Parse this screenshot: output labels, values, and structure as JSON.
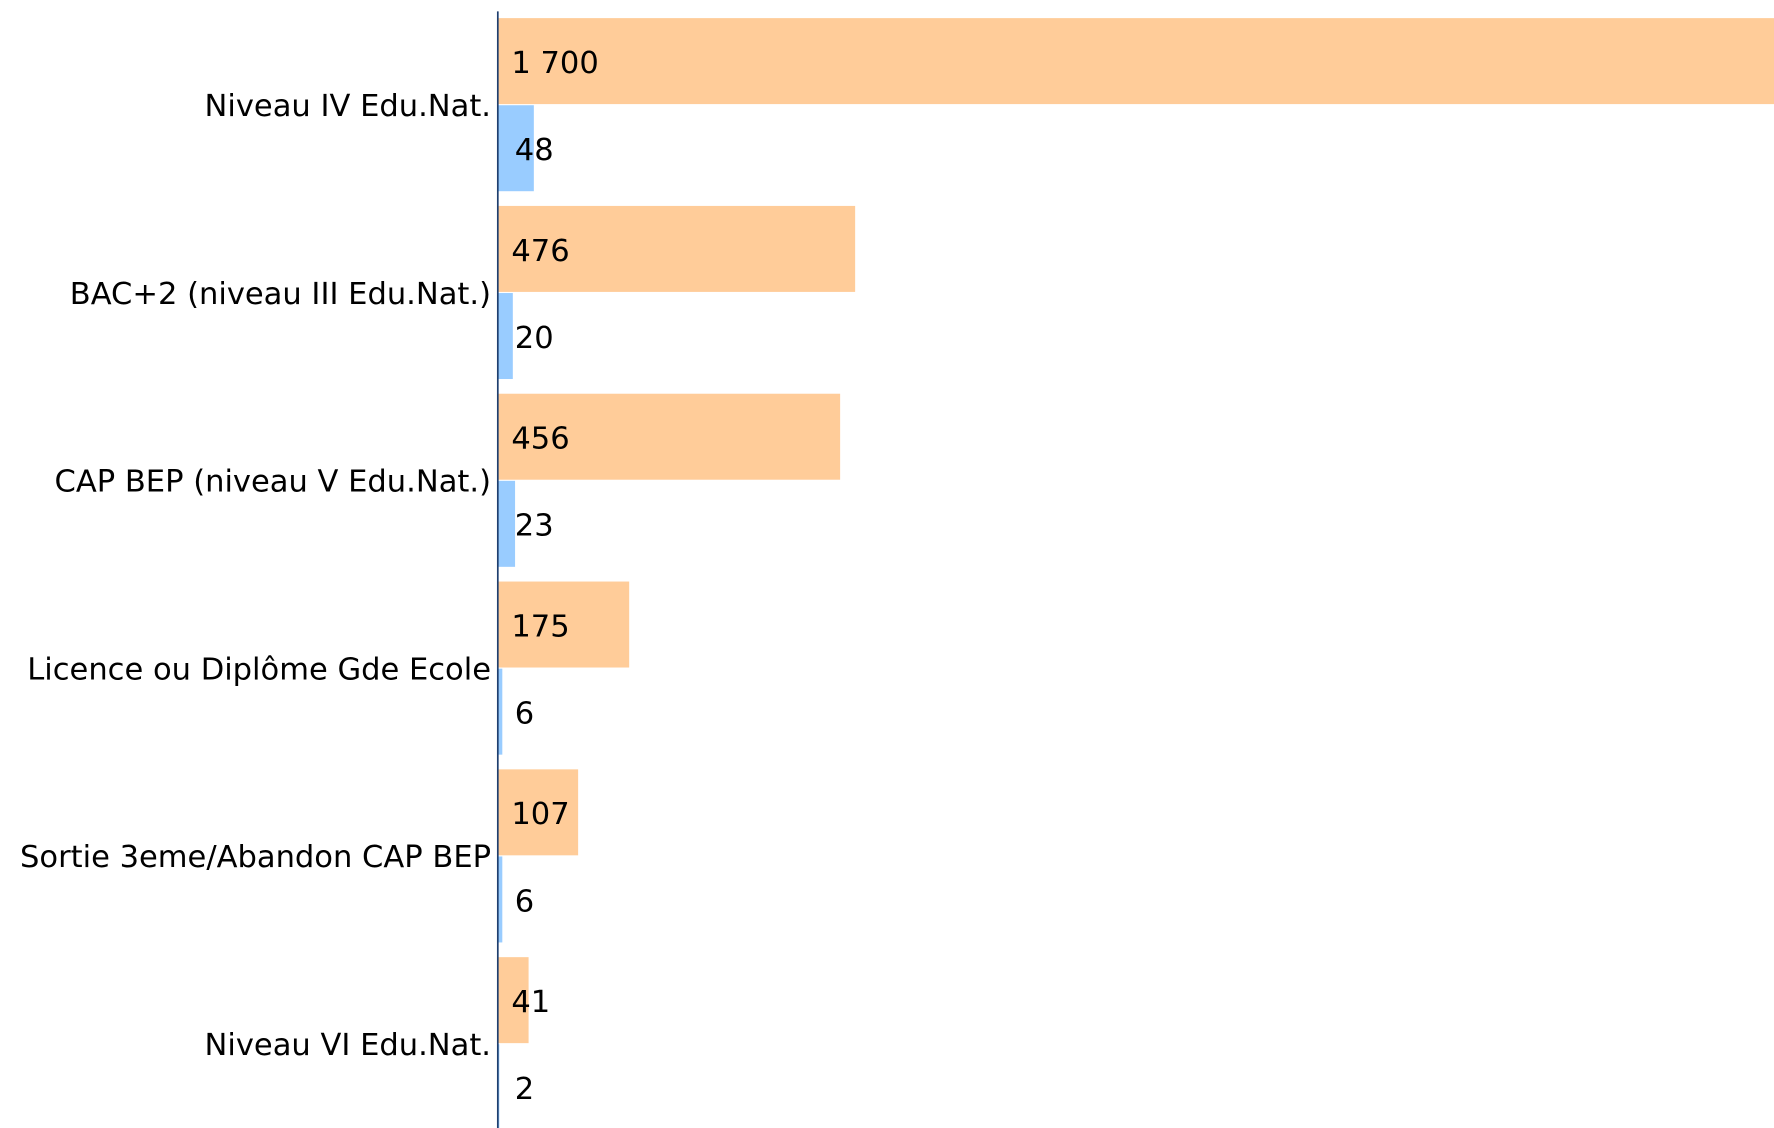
{
  "chart_data": {
    "type": "hbar",
    "categories": [
      "Niveau IV Edu.Nat.",
      "BAC+2 (niveau III Edu.Nat.)",
      "CAP BEP (niveau V Edu.Nat.)",
      "Licence ou Diplôme Gde Ecole",
      "Sortie 3eme/Abandon CAP BEP",
      "Niveau VI Edu.Nat."
    ],
    "series": [
      {
        "color": "#ffcc99",
        "values": [
          1700,
          476,
          456,
          175,
          107,
          41
        ],
        "value_labels": [
          "1 700",
          "476",
          "456",
          "175",
          "107",
          "41"
        ]
      },
      {
        "color": "#99ccff",
        "values": [
          48,
          20,
          23,
          6,
          6,
          2
        ]
      }
    ],
    "xlim": [
      0,
      1700
    ]
  }
}
